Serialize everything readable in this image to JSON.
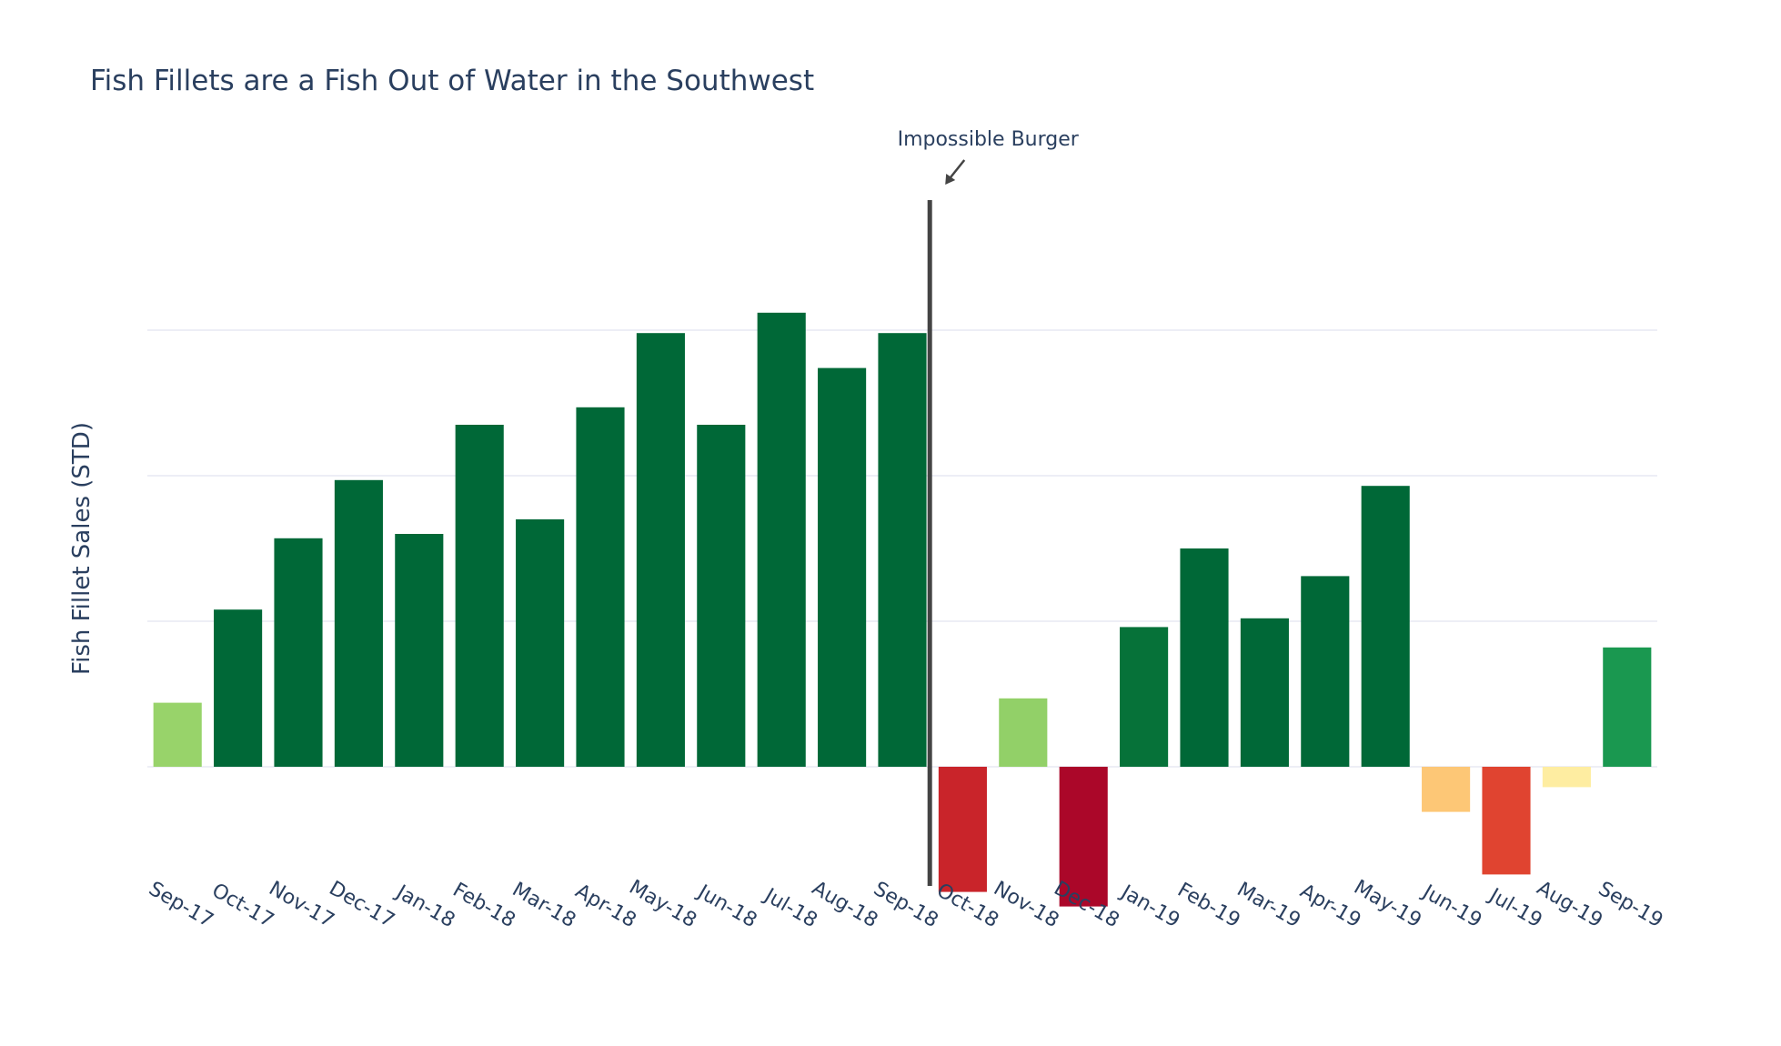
{
  "chart_data": {
    "type": "bar",
    "title": "Fish Fillets are a Fish Out of Water in the Southwest",
    "xlabel": "",
    "ylabel": "Fish Fillet Sales (STD)",
    "ylim": [
      -0.96,
      3.9
    ],
    "yticks": [
      1,
      2,
      3
    ],
    "grid": true,
    "show_yticklabels": false,
    "categories": [
      "Sep-17",
      "Oct-17",
      "Nov-17",
      "Dec-17",
      "Jan-18",
      "Feb-18",
      "Mar-18",
      "Apr-18",
      "May-18",
      "Jun-18",
      "Jul-18",
      "Aug-18",
      "Sep-18",
      "Oct-18",
      "Nov-18",
      "Dec-18",
      "Jan-19",
      "Feb-19",
      "Mar-19",
      "Apr-19",
      "May-19",
      "Jun-19",
      "Jul-19",
      "Aug-19",
      "Sep-19"
    ],
    "values": [
      0.44,
      1.08,
      1.57,
      1.97,
      1.6,
      2.35,
      1.7,
      2.47,
      2.98,
      2.35,
      3.12,
      2.74,
      2.98,
      -0.86,
      0.47,
      -0.96,
      0.96,
      1.5,
      1.02,
      1.31,
      1.93,
      -0.31,
      -0.74,
      -0.14,
      0.82
    ],
    "colors": [
      "#98d36a",
      "#006837",
      "#006837",
      "#006837",
      "#006837",
      "#006837",
      "#006837",
      "#006837",
      "#006837",
      "#006837",
      "#006837",
      "#006837",
      "#006837",
      "#c9242a",
      "#92d068",
      "#ab0729",
      "#067239",
      "#006837",
      "#006837",
      "#006837",
      "#006837",
      "#fdc776",
      "#e04430",
      "#feeda1",
      "#1a9850"
    ],
    "vline": {
      "between": [
        "Sep-18",
        "Oct-18"
      ],
      "color": "#444444"
    },
    "annotation": {
      "text": "Impossible Burger",
      "arrow": true
    }
  }
}
